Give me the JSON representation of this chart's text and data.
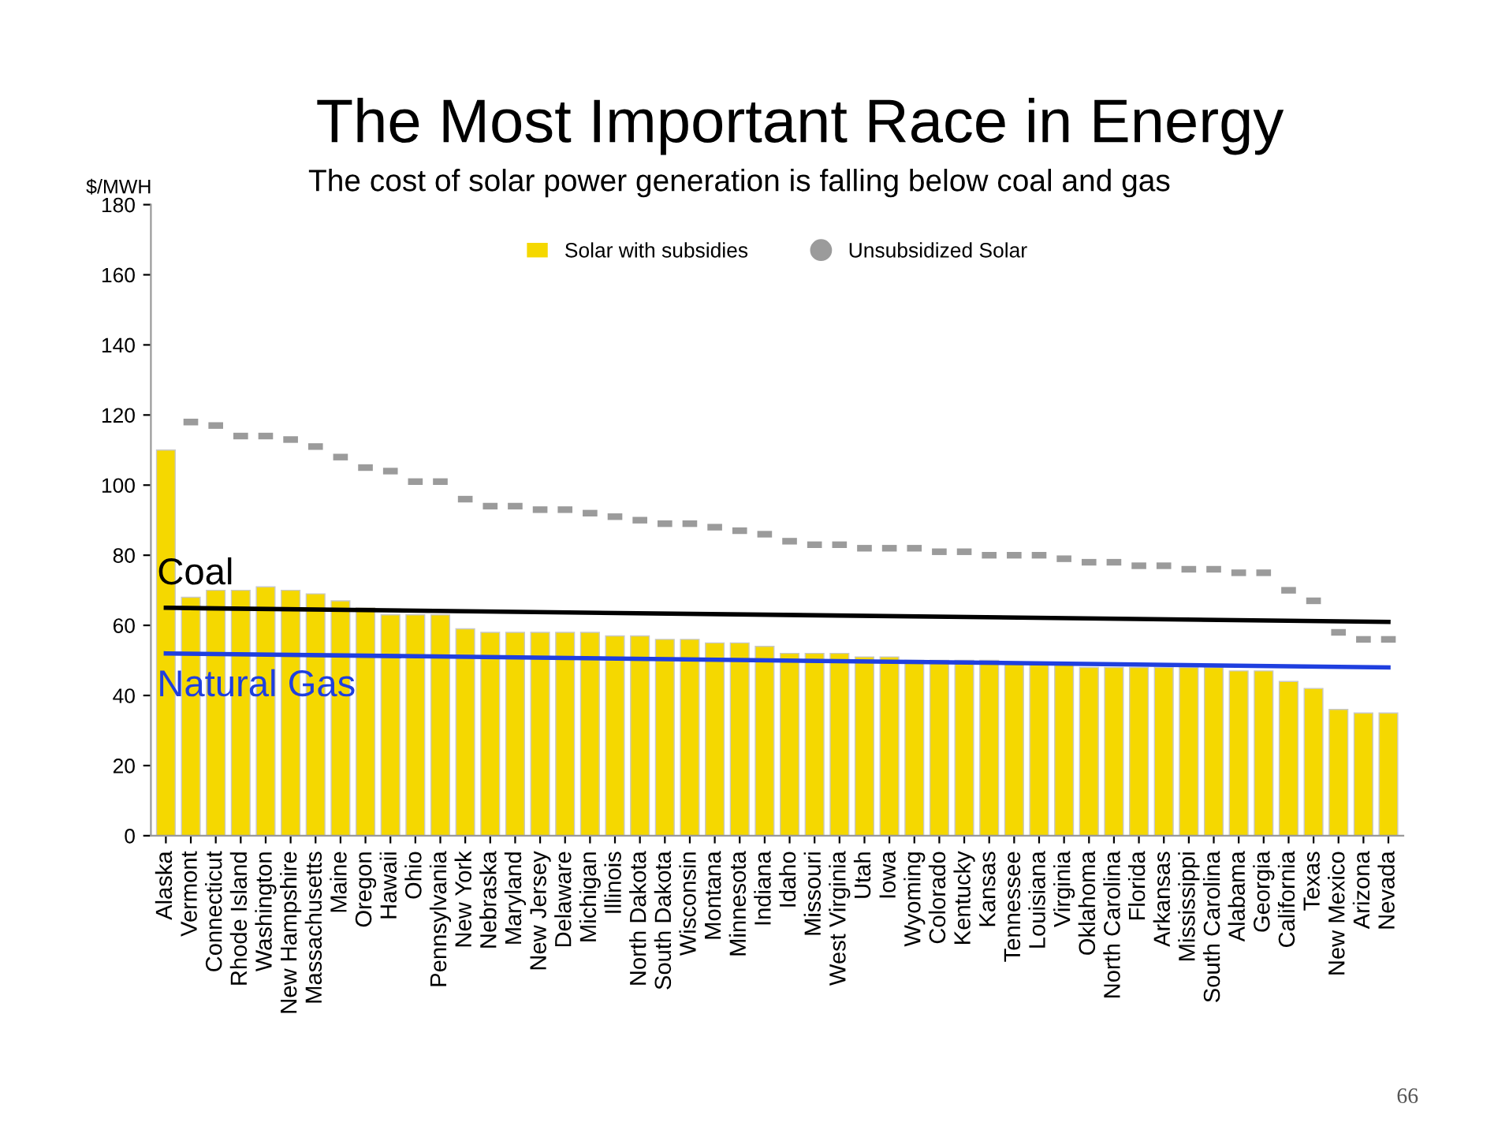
{
  "chart_data": {
    "type": "bar",
    "title": "The Most Important Race in Energy",
    "subtitle": "The cost of solar power generation is falling below coal and gas",
    "ylabel": "$/MWH",
    "categories": [
      "Alaska",
      "Vermont",
      "Connecticut",
      "Rhode Island",
      "Washington",
      "New Hampshire",
      "Massachusetts",
      "Maine",
      "Oregon",
      "Hawaii",
      "Ohio",
      "Pennsylvania",
      "New York",
      "Nebraska",
      "Maryland",
      "New Jersey",
      "Delaware",
      "Michigan",
      "Illinois",
      "North Dakota",
      "South Dakota",
      "Wisconsin",
      "Montana",
      "Minnesota",
      "Indiana",
      "Idaho",
      "Missouri",
      "West Virginia",
      "Utah",
      "Iowa",
      "Wyoming",
      "Colorado",
      "Kentucky",
      "Kansas",
      "Tennessee",
      "Louisiana",
      "Virginia",
      "Oklahoma",
      "North Carolina",
      "Florida",
      "Arkansas",
      "Mississippi",
      "South Carolina",
      "Alabama",
      "Georgia",
      "California",
      "Texas",
      "New Mexico",
      "Arizona",
      "Nevada"
    ],
    "series": [
      {
        "name": "Solar with subsidies",
        "color": "#f5d800",
        "values": [
          110,
          68,
          70,
          70,
          71,
          70,
          69,
          67,
          65,
          63,
          63,
          63,
          59,
          58,
          58,
          58,
          58,
          58,
          57,
          57,
          56,
          56,
          55,
          55,
          54,
          52,
          52,
          52,
          51,
          51,
          50,
          50,
          50,
          50,
          49,
          49,
          49,
          48,
          48,
          48,
          48,
          48,
          48,
          47,
          47,
          44,
          42,
          36,
          35,
          35
        ]
      },
      {
        "name": "Unsubsidized Solar",
        "type": "scatter",
        "color": "#9b9b9b",
        "x": [
          "Alaska",
          "Vermont",
          "Connecticut",
          "Rhode Island",
          "Washington",
          "New Hampshire",
          "Massachusetts",
          "Maine",
          "Oregon",
          "Hawaii",
          "Ohio",
          "Pennsylvania",
          "New York",
          "Nebraska",
          "Maryland",
          "New Jersey",
          "Delaware",
          "Michigan",
          "Illinois",
          "North Dakota",
          "South Dakota",
          "Wisconsin",
          "Montana",
          "Minnesota",
          "Indiana",
          "Idaho",
          "Missouri",
          "West Virginia",
          "Utah",
          "Iowa",
          "Wyoming",
          "Colorado",
          "Kentucky",
          "Kansas",
          "Tennessee",
          "Louisiana",
          "Virginia",
          "Oklahoma",
          "North Carolina",
          "Florida",
          "Arkansas",
          "Mississippi",
          "South Carolina",
          "Alabama",
          "Georgia",
          "California",
          "Texas",
          "New Mexico",
          "Arizona",
          "Nevada"
        ],
        "values": [
          null,
          118,
          117,
          114,
          114,
          113,
          111,
          108,
          105,
          104,
          101,
          101,
          96,
          94,
          94,
          93,
          93,
          92,
          91,
          90,
          89,
          89,
          88,
          87,
          86,
          84,
          83,
          83,
          82,
          82,
          82,
          81,
          81,
          80,
          80,
          80,
          79,
          78,
          78,
          77,
          77,
          76,
          76,
          75,
          75,
          70,
          67,
          58,
          56,
          56
        ]
      },
      {
        "name": "Coal",
        "type": "line",
        "color": "#000000",
        "x": [
          "Alaska",
          "Nevada"
        ],
        "values": [
          65,
          61
        ]
      },
      {
        "name": "Natural Gas",
        "type": "line",
        "color": "#1f3fdf",
        "x": [
          "Alaska",
          "Nevada"
        ],
        "values": [
          52,
          48
        ]
      }
    ],
    "ylim": [
      0,
      180
    ],
    "yticks": [
      0,
      20,
      40,
      60,
      80,
      100,
      120,
      140,
      160,
      180
    ],
    "legend": "top",
    "annotations": [
      "66"
    ]
  }
}
